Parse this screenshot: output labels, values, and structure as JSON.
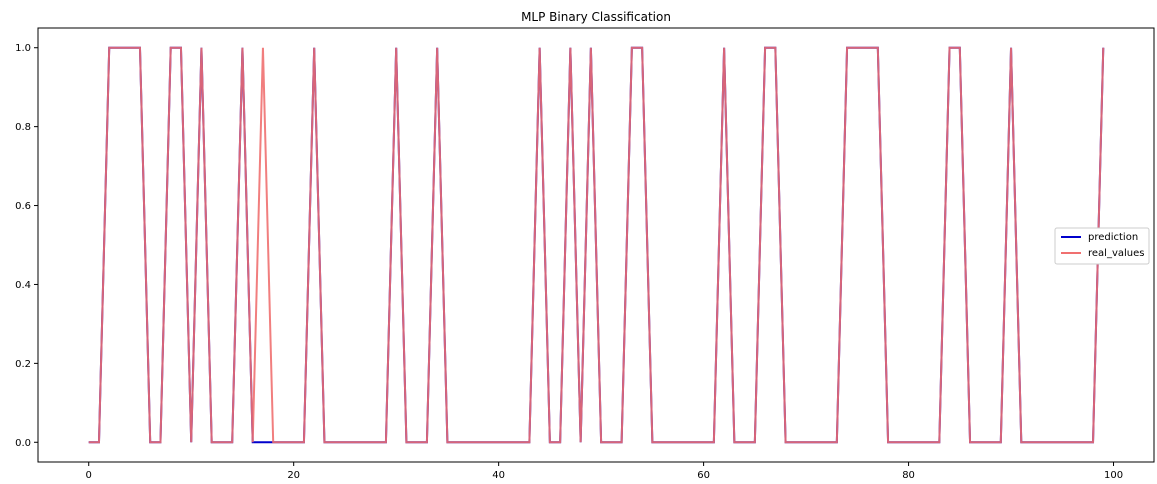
{
  "chart_data": {
    "type": "line",
    "title": "MLP Binary Classification",
    "xlabel": "",
    "ylabel": "",
    "xlim": [
      -4.95,
      103.95
    ],
    "ylim": [
      -0.05,
      1.05
    ],
    "xticks": [
      0,
      20,
      40,
      60,
      80,
      100
    ],
    "yticks": [
      0.0,
      0.2,
      0.4,
      0.6,
      0.8,
      1.0
    ],
    "xtick_labels": [
      "0",
      "20",
      "40",
      "60",
      "80",
      "100"
    ],
    "ytick_labels": [
      "0.0",
      "0.2",
      "0.4",
      "0.6",
      "0.8",
      "1.0"
    ],
    "grid": false,
    "legend_position": "center-right",
    "series": [
      {
        "name": "prediction",
        "color": "#0000cc",
        "values": [
          0,
          0,
          1,
          1,
          1,
          1,
          0,
          0,
          1,
          1,
          0,
          1,
          0,
          0,
          0,
          1,
          0,
          0,
          0,
          0,
          0,
          0,
          1,
          0,
          0,
          0,
          0,
          0,
          0,
          0,
          1,
          0,
          0,
          0,
          1,
          0,
          0,
          0,
          0,
          0,
          0,
          0,
          0,
          0,
          1,
          0,
          0,
          1,
          0,
          1,
          0,
          0,
          0,
          1,
          1,
          0,
          0,
          0,
          0,
          0,
          0,
          0,
          1,
          0,
          0,
          0,
          1,
          1,
          0,
          0,
          0,
          0,
          0,
          0,
          1,
          1,
          1,
          1,
          0,
          0,
          0,
          0,
          0,
          0,
          1,
          1,
          0,
          0,
          0,
          0,
          1,
          0,
          0,
          0,
          0,
          0,
          0,
          0,
          0,
          1
        ]
      },
      {
        "name": "real_values",
        "color": "#f07070",
        "values": [
          0,
          0,
          1,
          1,
          1,
          1,
          0,
          0,
          1,
          1,
          0,
          1,
          0,
          0,
          0,
          1,
          0,
          1,
          0,
          0,
          0,
          0,
          1,
          0,
          0,
          0,
          0,
          0,
          0,
          0,
          1,
          0,
          0,
          0,
          1,
          0,
          0,
          0,
          0,
          0,
          0,
          0,
          0,
          0,
          1,
          0,
          0,
          1,
          0,
          1,
          0,
          0,
          0,
          1,
          1,
          0,
          0,
          0,
          0,
          0,
          0,
          0,
          1,
          0,
          0,
          0,
          1,
          1,
          0,
          0,
          0,
          0,
          0,
          0,
          1,
          1,
          1,
          1,
          0,
          0,
          0,
          0,
          0,
          0,
          1,
          1,
          0,
          0,
          0,
          0,
          1,
          0,
          0,
          0,
          0,
          0,
          0,
          0,
          0,
          1
        ]
      }
    ]
  }
}
